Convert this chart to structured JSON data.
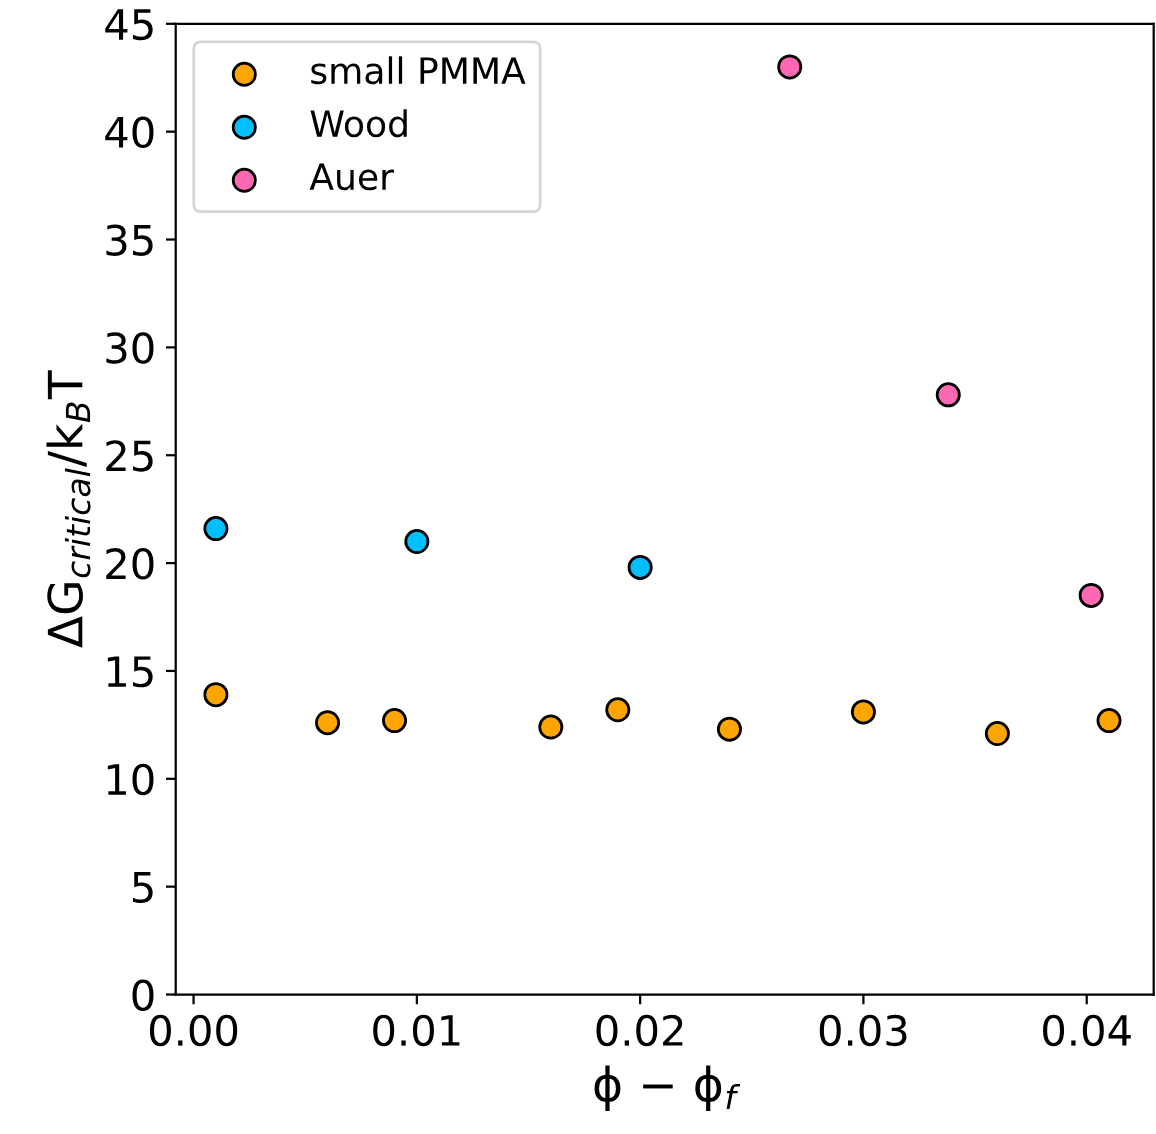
{
  "chart_data": {
    "type": "scatter",
    "xlabel": "ϕ − ϕ$_{f}$",
    "ylabel": "ΔG$_{critical}$/k$_{B}$T",
    "series": [
      {
        "name": "small PMMA",
        "color": "#ffa500",
        "x": [
          0.001,
          0.006,
          0.009,
          0.016,
          0.019,
          0.024,
          0.03,
          0.036,
          0.041
        ],
        "values": [
          13.9,
          12.6,
          12.7,
          12.4,
          13.2,
          12.3,
          13.1,
          12.1,
          12.7
        ]
      },
      {
        "name": "Wood",
        "color": "#00bfff",
        "x": [
          0.001,
          0.01,
          0.02
        ],
        "values": [
          21.6,
          21.0,
          19.8
        ]
      },
      {
        "name": "Auer",
        "color": "#ff69b4",
        "x": [
          0.0267,
          0.0338,
          0.0402
        ],
        "values": [
          43.0,
          27.8,
          18.5
        ]
      }
    ],
    "xlim": [
      -0.0008,
      0.043
    ],
    "ylim": [
      0,
      45
    ],
    "xticks": [
      {
        "value": 0,
        "label": "0.00"
      },
      {
        "value": 0.01,
        "label": "0.01"
      },
      {
        "value": 0.02,
        "label": "0.02"
      },
      {
        "value": 0.03,
        "label": "0.03"
      },
      {
        "value": 0.04,
        "label": "0.04"
      }
    ],
    "yticks": [
      0,
      5,
      10,
      15,
      20,
      25,
      30,
      35,
      40,
      45
    ],
    "marker": "circle",
    "legend": "top left",
    "grid": false
  }
}
